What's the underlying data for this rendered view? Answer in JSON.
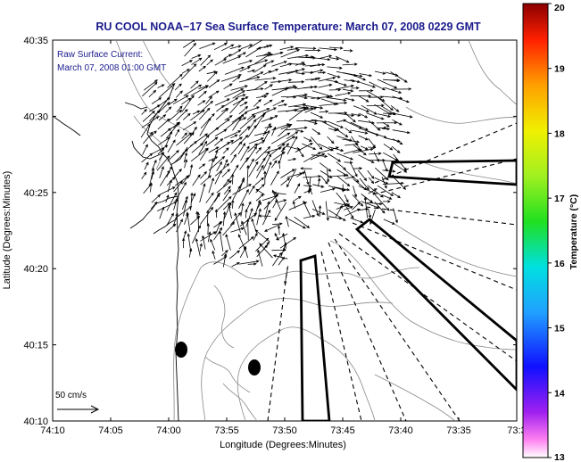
{
  "title": "RU COOL  NOAA−17  Sea Surface Temperature:  March 07, 2008 0229 GMT",
  "annotation": {
    "line1": "Raw Surface Current:",
    "line2": "March 07, 2008 01:00 GMT"
  },
  "scale_label": "50 cm/s",
  "axes": {
    "xlabel": "Longitude (Degrees:Minutes)",
    "ylabel": "Latitude (Degrees:Minutes)",
    "x_ticks": [
      "74:10",
      "74:05",
      "74:00",
      "73:55",
      "73:50",
      "73:45",
      "73:40",
      "73:35",
      "73:3"
    ],
    "y_ticks": [
      "40:35",
      "40:30",
      "40:25",
      "40:20",
      "40:15",
      "40:10"
    ]
  },
  "colorbar": {
    "label": "Temperature (°C)",
    "min": 13,
    "max": 20,
    "ticks": [
      "20",
      "19",
      "18",
      "17",
      "16",
      "15",
      "14",
      "13"
    ]
  },
  "colors": {
    "title": "#1a1a8c",
    "annotation": "#1a1a8c",
    "land": "#ffffff",
    "lines": "#000000"
  }
}
